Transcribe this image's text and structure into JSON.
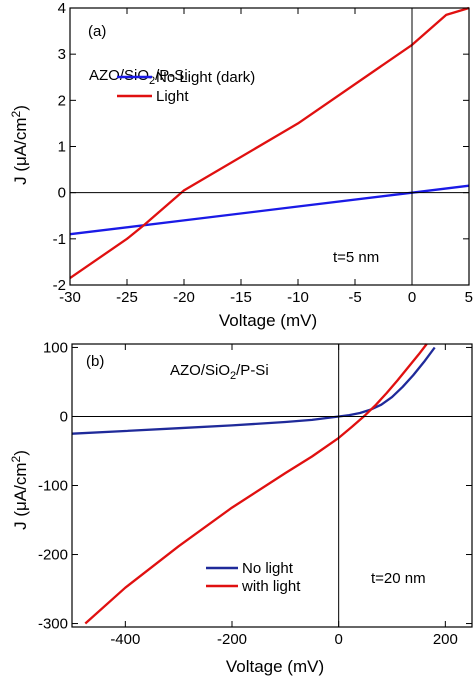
{
  "chart_data": [
    {
      "type": "line",
      "panel_label": "(a)",
      "sample_label": {
        "pre": "AZO/SiO",
        "sub": "2",
        "post": "/P-Si"
      },
      "annotation": "t=5 nm",
      "xlabel": "Voltage (mV)",
      "ylabel": {
        "pre": "J (μA/cm",
        "sup": "2",
        "post": ")"
      },
      "xlim": [
        -30,
        5
      ],
      "ylim": [
        -2,
        4
      ],
      "xticks": [
        -30,
        -25,
        -20,
        -15,
        -10,
        -5,
        0,
        5
      ],
      "yticks": [
        -2,
        -1,
        0,
        1,
        2,
        3,
        4
      ],
      "zero_lines": true,
      "legend_position": "top-left",
      "series": [
        {
          "name": "No Light (dark)",
          "color": "#1a1ae6",
          "x": [
            -30,
            -20,
            -10,
            0,
            5
          ],
          "y": [
            -0.9,
            -0.6,
            -0.3,
            0.0,
            0.15
          ]
        },
        {
          "name": "Light",
          "color": "#e01010",
          "x": [
            -30,
            -25,
            -23.5,
            -20,
            -10,
            0,
            3,
            5
          ],
          "y": [
            -1.85,
            -1.0,
            -0.7,
            0.05,
            1.5,
            3.2,
            3.85,
            4.0
          ]
        }
      ]
    },
    {
      "type": "line",
      "panel_label": "(b)",
      "sample_label": {
        "pre": "AZO/SiO",
        "sub": "2",
        "post": "/P-Si"
      },
      "annotation": "t=20 nm",
      "xlabel": "Voltage (mV)",
      "ylabel": {
        "pre": "J (μA/cm",
        "sup": "2",
        "post": ")"
      },
      "xlim": [
        -500,
        250
      ],
      "ylim": [
        -305,
        105
      ],
      "xticks": [
        -400,
        -200,
        0,
        200
      ],
      "yticks": [
        -300,
        -200,
        -100,
        0,
        100
      ],
      "zero_lines": true,
      "legend_position": "bottom-center",
      "series": [
        {
          "name": "No light",
          "color": "#1f2a9a",
          "x": [
            -500,
            -400,
            -300,
            -200,
            -100,
            -50,
            0,
            20,
            40,
            60,
            80,
            100,
            120,
            140,
            160,
            180
          ],
          "y": [
            -25,
            -21,
            -17,
            -13,
            -8,
            -5,
            0,
            2,
            5,
            10,
            17,
            28,
            43,
            60,
            79,
            100
          ]
        },
        {
          "name": "with light",
          "color": "#e01010",
          "x": [
            -475,
            -400,
            -300,
            -200,
            -100,
            -50,
            0,
            25,
            50,
            70,
            90,
            110,
            130,
            150,
            165
          ],
          "y": [
            -300,
            -248,
            -188,
            -132,
            -82,
            -58,
            -31,
            -15,
            2,
            17,
            34,
            52,
            71,
            90,
            105
          ]
        }
      ]
    }
  ]
}
